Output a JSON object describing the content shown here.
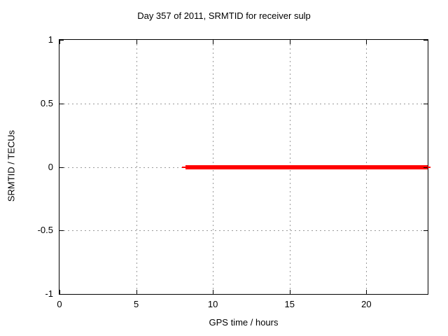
{
  "chart_data": {
    "type": "line",
    "title": "Day 357 of 2011, SRMTID for receiver sulp",
    "xlabel": "GPS time / hours",
    "ylabel": "SRMTID / TECUs",
    "xlim": [
      0,
      24
    ],
    "ylim": [
      -1,
      1
    ],
    "x_ticks": [
      0,
      5,
      10,
      15,
      20
    ],
    "x_tick_labels": [
      "0",
      "5",
      "10",
      "15",
      "20"
    ],
    "y_ticks": [
      -1,
      -0.5,
      0,
      0.5,
      1
    ],
    "y_tick_labels": [
      "-1",
      "-0.5",
      "0",
      "0.5",
      "1"
    ],
    "grid": "dashed",
    "legend": "none",
    "series": [
      {
        "name": "SRMTID",
        "color": "#ff0000",
        "style": "thick-line",
        "x": [
          8.0,
          24.0
        ],
        "y": [
          0.0,
          0.0
        ]
      }
    ]
  },
  "colors": {
    "background": "#ffffff",
    "axis": "#000000",
    "grid": "#9a9a9a",
    "text": "#000000",
    "series_red": "#ff0000"
  }
}
